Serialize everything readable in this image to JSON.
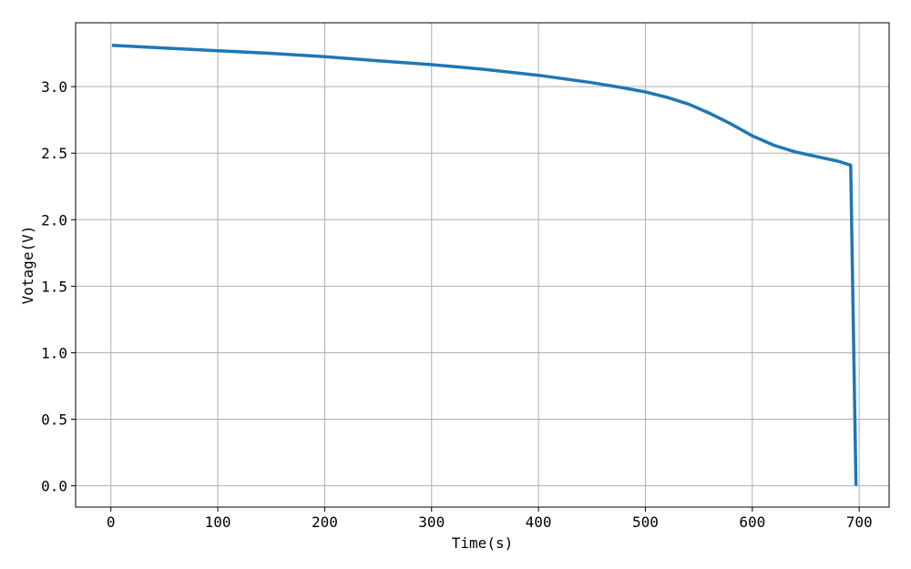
{
  "chart_data": {
    "type": "line",
    "title": "",
    "xlabel": "Time(s)",
    "ylabel": "Votage(V)",
    "xlim": [
      -33,
      728
    ],
    "ylim": [
      -0.16,
      3.48
    ],
    "x_ticks": [
      0,
      100,
      200,
      300,
      400,
      500,
      600,
      700
    ],
    "y_ticks": [
      0.0,
      0.5,
      1.0,
      1.5,
      2.0,
      2.5,
      3.0
    ],
    "x_tick_labels": [
      "0",
      "100",
      "200",
      "300",
      "400",
      "500",
      "600",
      "700"
    ],
    "y_tick_labels": [
      "0.0",
      "0.5",
      "1.0",
      "1.5",
      "2.0",
      "2.5",
      "3.0"
    ],
    "grid": true,
    "legend": "none",
    "series": [
      {
        "color": "#1f77b4",
        "x": [
          1,
          50,
          100,
          150,
          200,
          250,
          300,
          350,
          400,
          450,
          480,
          500,
          520,
          540,
          560,
          580,
          600,
          620,
          640,
          660,
          680,
          692,
          697
        ],
        "y": [
          3.31,
          3.29,
          3.27,
          3.25,
          3.225,
          3.195,
          3.165,
          3.13,
          3.085,
          3.03,
          2.99,
          2.96,
          2.92,
          2.87,
          2.8,
          2.72,
          2.63,
          2.56,
          2.51,
          2.475,
          2.44,
          2.41,
          0.0
        ]
      }
    ]
  }
}
